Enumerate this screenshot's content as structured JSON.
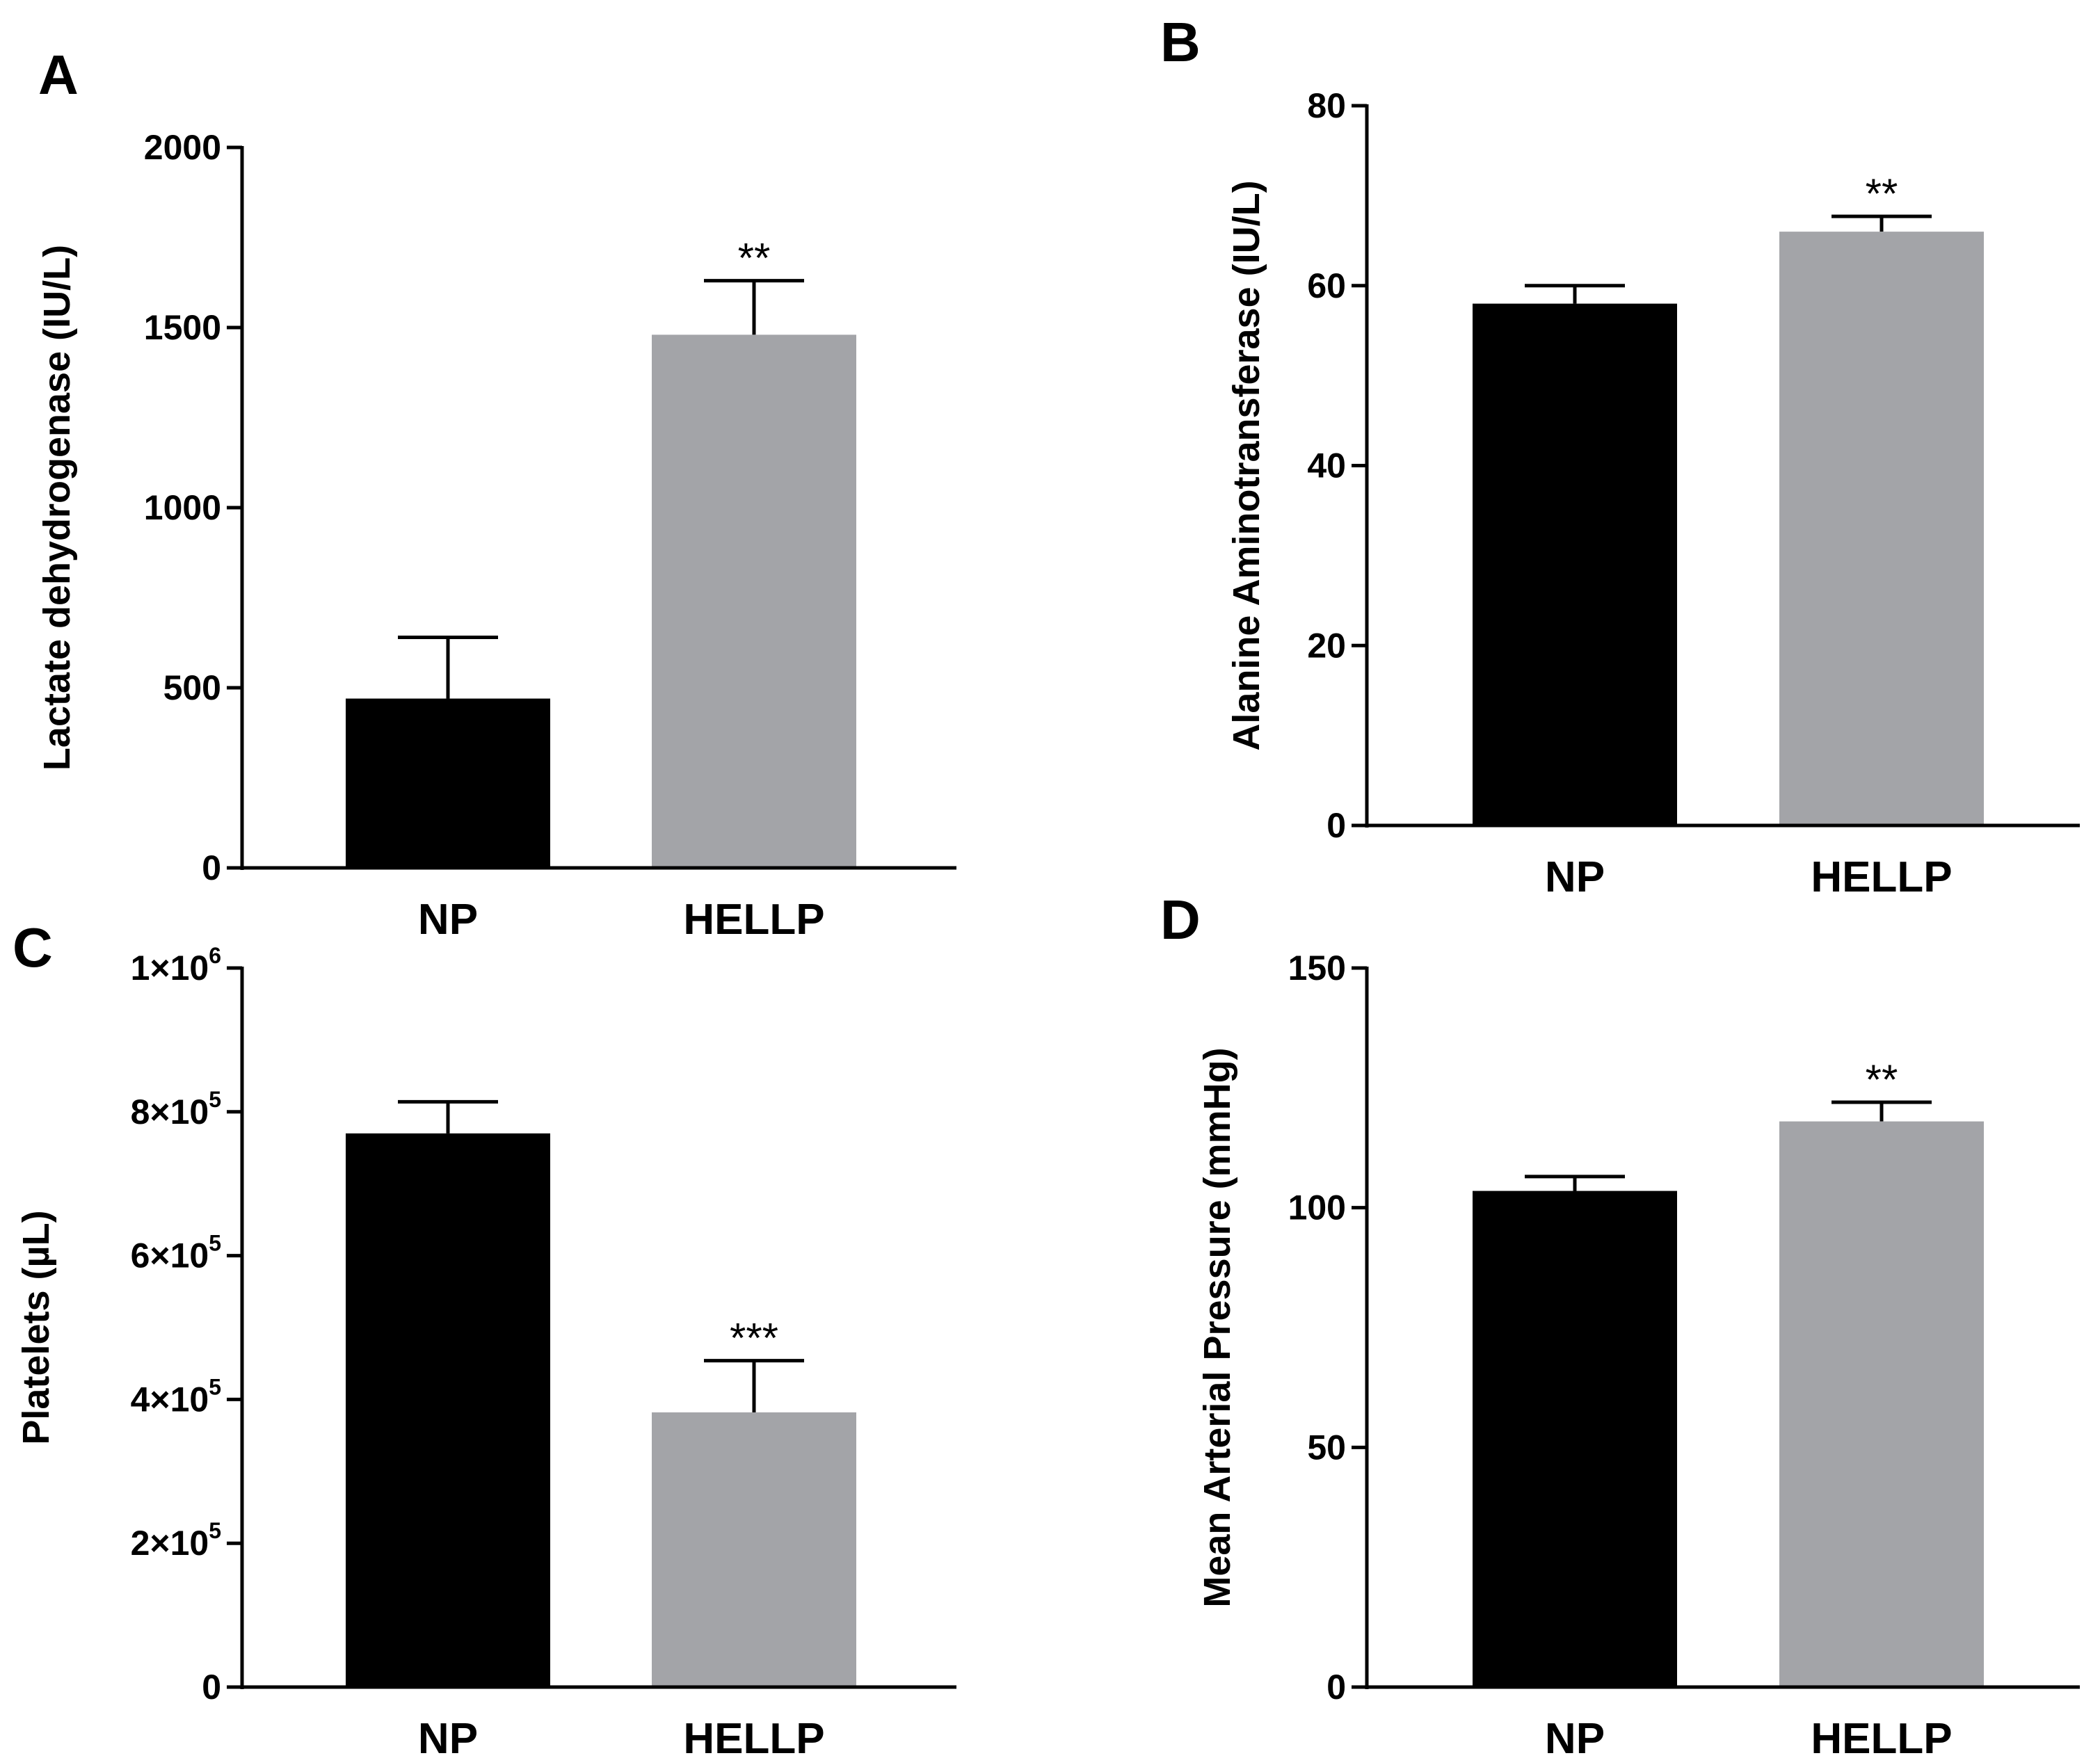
{
  "figure": {
    "colors": {
      "np": "#000000",
      "hellp": "#a3a4a8",
      "axis": "#000000"
    }
  },
  "chart_data": [
    {
      "panel": "A",
      "type": "bar",
      "categories": [
        "NP",
        "HELLP"
      ],
      "values": [
        470,
        1480
      ],
      "errors": [
        170,
        150
      ],
      "significance": [
        "",
        "**"
      ],
      "ylabel": "Lactate dehydrogenase (IU/L)",
      "ylim": [
        0,
        2000
      ],
      "yticks": [
        0,
        500,
        1000,
        1500,
        2000
      ],
      "ytick_labels": [
        "0",
        "500",
        "1000",
        "1500",
        "2000"
      ]
    },
    {
      "panel": "B",
      "type": "bar",
      "categories": [
        "NP",
        "HELLP"
      ],
      "values": [
        58,
        66
      ],
      "errors": [
        2,
        1.7
      ],
      "significance": [
        "",
        "**"
      ],
      "ylabel": "Alanine Aminotransferase  (IU/L)",
      "ylim": [
        0,
        80
      ],
      "yticks": [
        0,
        20,
        40,
        60,
        80
      ],
      "ytick_labels": [
        "0",
        "20",
        "40",
        "60",
        "80"
      ]
    },
    {
      "panel": "C",
      "type": "bar",
      "categories": [
        "NP",
        "HELLP"
      ],
      "values": [
        770000,
        382000
      ],
      "errors": [
        44000,
        72000
      ],
      "significance": [
        "",
        "***"
      ],
      "ylabel": "Platelets (µL)",
      "ylim": [
        0,
        1000000
      ],
      "yticks": [
        0,
        200000,
        400000,
        600000,
        800000,
        1000000
      ],
      "ytick_labels": [
        {
          "base": "0",
          "exp": ""
        },
        {
          "base": "2×10",
          "exp": "5"
        },
        {
          "base": "4×10",
          "exp": "5"
        },
        {
          "base": "6×10",
          "exp": "5"
        },
        {
          "base": "8×10",
          "exp": "5"
        },
        {
          "base": "1×10",
          "exp": "6"
        }
      ]
    },
    {
      "panel": "D",
      "type": "bar",
      "categories": [
        "NP",
        "HELLP"
      ],
      "values": [
        103.5,
        118
      ],
      "errors": [
        3,
        4
      ],
      "significance": [
        "",
        "**"
      ],
      "ylabel": "Mean Arterial Pressure (mmHg)",
      "ylim": [
        0,
        150
      ],
      "yticks": [
        0,
        50,
        100,
        150
      ],
      "ytick_labels": [
        "0",
        "50",
        "100",
        "150"
      ]
    }
  ]
}
